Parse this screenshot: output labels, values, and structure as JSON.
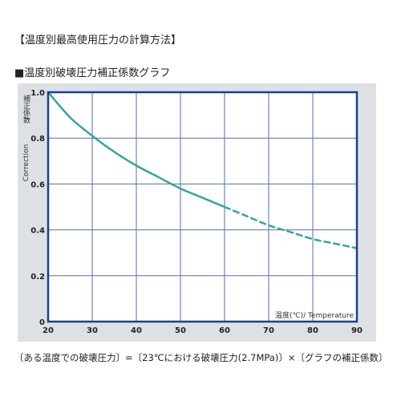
{
  "page": {
    "heading": "【温度別最高使用圧力の計算方法】",
    "subheading": "■温度別破壊圧力補正係数グラフ",
    "formula": "〔ある温度での破壊圧力〕=〔23℃における破壊圧力(2.7MPa)〕×〔グラフの補正係数〕"
  },
  "colors": {
    "frame": "#1f3f8a",
    "grid": "#5a6fa8",
    "curve": "#3aa39a",
    "plot_bg": "#ffffff",
    "outer_bg": "#dde1e6"
  },
  "chart_data": {
    "type": "line",
    "title": "",
    "xlabel": "温度(℃)/ Temperature",
    "ylabel_jp": "補正係数",
    "ylabel_en": "Correction",
    "ylabel_sep": "/",
    "xlim": [
      20,
      90
    ],
    "ylim": [
      0,
      1.0
    ],
    "x_ticks": [
      "20",
      "30",
      "40",
      "50",
      "60",
      "70",
      "80",
      "90"
    ],
    "y_ticks": [
      "0",
      "0.2",
      "0.4",
      "0.6",
      "0.8",
      "1.0"
    ],
    "grid": true,
    "series": [
      {
        "style": "solid",
        "x": [
          20,
          25,
          30,
          35,
          40,
          45,
          50,
          55,
          60
        ],
        "y": [
          1.0,
          0.89,
          0.81,
          0.74,
          0.68,
          0.63,
          0.58,
          0.54,
          0.5
        ]
      },
      {
        "style": "dashed",
        "x": [
          60,
          65,
          70,
          75,
          80,
          85,
          90
        ],
        "y": [
          0.5,
          0.46,
          0.42,
          0.39,
          0.36,
          0.34,
          0.32
        ]
      }
    ]
  }
}
